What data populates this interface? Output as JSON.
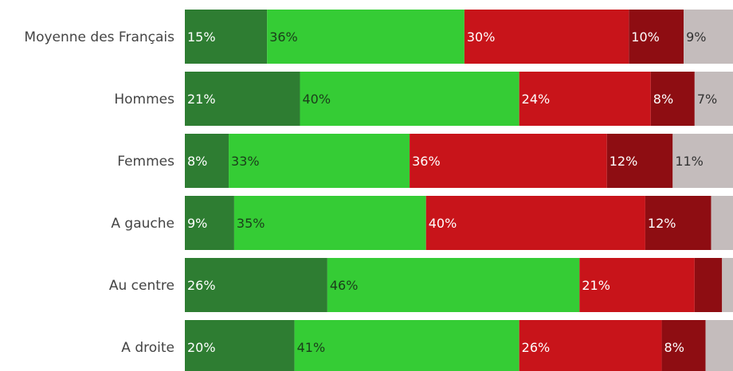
{
  "chart_data": {
    "type": "bar",
    "orientation": "horizontal",
    "stacked": true,
    "grid": false,
    "legend": "none",
    "categories": [
      "Moyenne des Français",
      "Hommes",
      "Femmes",
      "A gauche",
      "Au centre",
      "A droite"
    ],
    "series": [
      {
        "color": "#2e7d32",
        "label_color": "#ffffff",
        "values": [
          15,
          21,
          8,
          9,
          26,
          20
        ]
      },
      {
        "color": "#35cc35",
        "label_color": "#1b3d1b",
        "values": [
          36,
          40,
          33,
          35,
          46,
          41
        ]
      },
      {
        "color": "#c8141a",
        "label_color": "#ffffff",
        "values": [
          30,
          24,
          36,
          40,
          21,
          26
        ]
      },
      {
        "color": "#8e0d12",
        "label_color": "#ffffff",
        "values": [
          10,
          8,
          12,
          12,
          5,
          8
        ]
      },
      {
        "color": "#c4bcbc",
        "label_color": "#333333",
        "values": [
          9,
          7,
          11,
          4,
          2,
          5
        ]
      }
    ],
    "data_labels": [
      [
        "15%",
        "36%",
        "30%",
        "10%",
        "9%"
      ],
      [
        "21%",
        "40%",
        "24%",
        "8%",
        "7%"
      ],
      [
        "8%",
        "33%",
        "36%",
        "12%",
        "11%"
      ],
      [
        "9%",
        "35%",
        "40%",
        "12%",
        ""
      ],
      [
        "26%",
        "46%",
        "21%",
        "",
        ""
      ],
      [
        "20%",
        "41%",
        "26%",
        "8%",
        ""
      ]
    ]
  }
}
